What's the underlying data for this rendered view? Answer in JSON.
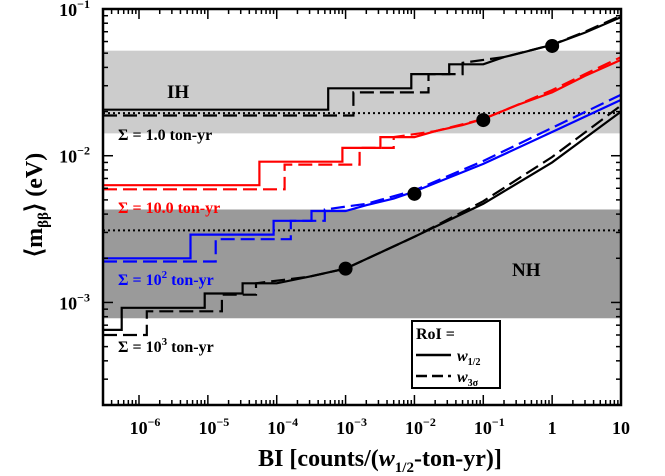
{
  "chart_data": {
    "type": "line",
    "xlabel": "BI [counts/(w1/2-ton-yr)]",
    "ylabel": "⟨mββ⟩ (eV)",
    "xscale": "log",
    "yscale": "log",
    "xlim": [
      3e-07,
      10
    ],
    "ylim": [
      0.0002,
      0.1
    ],
    "grid": false,
    "x_ticks": [
      {
        "value": 1e-06,
        "base": "10",
        "exp": "−6"
      },
      {
        "value": 1e-05,
        "base": "10",
        "exp": "−5"
      },
      {
        "value": 0.0001,
        "base": "10",
        "exp": "−4"
      },
      {
        "value": 0.001,
        "base": "10",
        "exp": "−3"
      },
      {
        "value": 0.01,
        "base": "10",
        "exp": "−2"
      },
      {
        "value": 0.1,
        "base": "10",
        "exp": "−1"
      },
      {
        "value": 1,
        "base": "1",
        "exp": ""
      },
      {
        "value": 10,
        "base": "10",
        "exp": ""
      }
    ],
    "y_ticks": [
      {
        "value": 0.1,
        "base": "10",
        "exp": "−1"
      },
      {
        "value": 0.01,
        "base": "10",
        "exp": "−2"
      },
      {
        "value": 0.001,
        "base": "10",
        "exp": "−3"
      }
    ],
    "bands": [
      {
        "label": "IH",
        "y_range": [
          0.0142,
          0.052
        ],
        "color": "#cccccc"
      },
      {
        "label": "NH",
        "y_range": [
          0.00078,
          0.0043
        ],
        "color": "#9a9a9a"
      }
    ],
    "reference_lines": [
      0.0195,
      0.0031
    ],
    "series": [
      {
        "name": "Σ = 1.0 ton-yr",
        "color": "#000000",
        "solid": [
          [
            3e-07,
            0.0206
          ],
          [
            0.00056,
            0.0206
          ],
          [
            0.00056,
            0.0288
          ],
          [
            0.009,
            0.0288
          ],
          [
            0.009,
            0.036
          ],
          [
            0.032,
            0.036
          ],
          [
            0.032,
            0.042
          ],
          [
            0.1,
            0.042
          ],
          [
            0.2,
            0.047
          ],
          [
            0.4,
            0.051
          ],
          [
            1,
            0.057
          ],
          [
            3,
            0.069
          ],
          [
            10,
            0.088
          ]
        ],
        "dashed": [
          [
            3e-07,
            0.0188
          ],
          [
            0.0013,
            0.0188
          ],
          [
            0.0013,
            0.027
          ],
          [
            0.016,
            0.027
          ],
          [
            0.016,
            0.036
          ],
          [
            0.05,
            0.036
          ],
          [
            0.05,
            0.043
          ],
          [
            0.2,
            0.047
          ],
          [
            1,
            0.057
          ],
          [
            3,
            0.07
          ],
          [
            10,
            0.09
          ]
        ],
        "marker": [
          1,
          0.056
        ]
      },
      {
        "name": "Σ = 10.0 ton-yr",
        "color": "#ff0000",
        "solid": [
          [
            3e-07,
            0.0063
          ],
          [
            5.6e-05,
            0.0063
          ],
          [
            5.6e-05,
            0.0091
          ],
          [
            0.0009,
            0.0091
          ],
          [
            0.0009,
            0.0113
          ],
          [
            0.0032,
            0.0113
          ],
          [
            0.0032,
            0.0134
          ],
          [
            0.01,
            0.0134
          ],
          [
            0.02,
            0.0147
          ],
          [
            0.05,
            0.0162
          ],
          [
            0.1,
            0.0178
          ],
          [
            0.3,
            0.022
          ],
          [
            1,
            0.027
          ],
          [
            3,
            0.035
          ],
          [
            10,
            0.045
          ]
        ],
        "dashed": [
          [
            3e-07,
            0.0059
          ],
          [
            5.6e-05,
            0.0059
          ],
          [
            0.00013,
            0.0059
          ],
          [
            0.00013,
            0.0087
          ],
          [
            0.0016,
            0.0087
          ],
          [
            0.0016,
            0.0113
          ],
          [
            0.005,
            0.0113
          ],
          [
            0.005,
            0.0134
          ],
          [
            0.02,
            0.0147
          ],
          [
            0.1,
            0.0178
          ],
          [
            0.3,
            0.022
          ],
          [
            1,
            0.028
          ],
          [
            3,
            0.036
          ],
          [
            10,
            0.047
          ]
        ],
        "marker": [
          0.1,
          0.0175
        ]
      },
      {
        "name": "Σ = 10² ton-yr",
        "color": "#0000ff",
        "solid": [
          [
            3e-07,
            0.002
          ],
          [
            5.6e-06,
            0.002
          ],
          [
            5.6e-06,
            0.0029
          ],
          [
            9e-05,
            0.0029
          ],
          [
            9e-05,
            0.0036
          ],
          [
            0.00032,
            0.0036
          ],
          [
            0.00032,
            0.0042
          ],
          [
            0.001,
            0.0042
          ],
          [
            0.002,
            0.0046
          ],
          [
            0.005,
            0.0051
          ],
          [
            0.01,
            0.0057
          ],
          [
            0.1,
            0.0088
          ],
          [
            1,
            0.0145
          ],
          [
            10,
            0.024
          ]
        ],
        "dashed": [
          [
            3e-07,
            0.0019
          ],
          [
            1.3e-05,
            0.0019
          ],
          [
            1.3e-05,
            0.0027
          ],
          [
            0.00016,
            0.0027
          ],
          [
            0.00016,
            0.0036
          ],
          [
            0.0005,
            0.0036
          ],
          [
            0.0005,
            0.0043
          ],
          [
            0.002,
            0.0047
          ],
          [
            0.01,
            0.0058
          ],
          [
            0.1,
            0.0092
          ],
          [
            1,
            0.0155
          ],
          [
            10,
            0.026
          ]
        ],
        "marker": [
          0.01,
          0.0055
        ]
      },
      {
        "name": "Σ = 10³ ton-yr",
        "color": "#000000",
        "solid": [
          [
            3e-07,
            0.00065
          ],
          [
            5.6e-07,
            0.00065
          ],
          [
            5.6e-07,
            0.00092
          ],
          [
            9e-06,
            0.00092
          ],
          [
            9e-06,
            0.00115
          ],
          [
            3.2e-05,
            0.00115
          ],
          [
            3.2e-05,
            0.00135
          ],
          [
            0.0001,
            0.00135
          ],
          [
            0.0003,
            0.0015
          ],
          [
            0.001,
            0.0017
          ],
          [
            0.01,
            0.0028
          ],
          [
            0.1,
            0.0047
          ],
          [
            1,
            0.009
          ],
          [
            10,
            0.02
          ]
        ],
        "dashed": [
          [
            3e-07,
            0.0006
          ],
          [
            1.3e-06,
            0.0006
          ],
          [
            1.3e-06,
            0.00087
          ],
          [
            1.6e-05,
            0.00087
          ],
          [
            1.6e-05,
            0.00113
          ],
          [
            5e-05,
            0.00113
          ],
          [
            5e-05,
            0.00135
          ],
          [
            0.0003,
            0.0015
          ],
          [
            0.001,
            0.0017
          ],
          [
            0.01,
            0.0028
          ],
          [
            0.1,
            0.0049
          ],
          [
            1,
            0.0098
          ],
          [
            10,
            0.022
          ]
        ],
        "marker": [
          0.001,
          0.0017
        ]
      }
    ],
    "legend": {
      "title": "RoI =",
      "placement": "bottom-right",
      "entries": [
        {
          "style": "solid",
          "base": "w",
          "sub": "1/2"
        },
        {
          "style": "dashed",
          "base": "w",
          "sub": "3σ"
        }
      ]
    }
  },
  "labels": {
    "ih": "IH",
    "nh": "NH",
    "s1": "Σ = 1.0 ton-yr",
    "s10": "Σ = 10.0 ton-yr",
    "s100_pre": "Σ = 10",
    "s100_sup": "2",
    "s100_post": " ton-yr",
    "s1000_pre": "Σ = 10",
    "s1000_sup": "3",
    "s1000_post": " ton-yr",
    "ylabel_a": "⟨m",
    "ylabel_sub": "ββ",
    "ylabel_b": "⟩ (eV)",
    "xlabel_a": "BI [counts/(",
    "xlabel_w": "w",
    "xlabel_sub": "1/2",
    "xlabel_b": "-ton-yr)]"
  }
}
